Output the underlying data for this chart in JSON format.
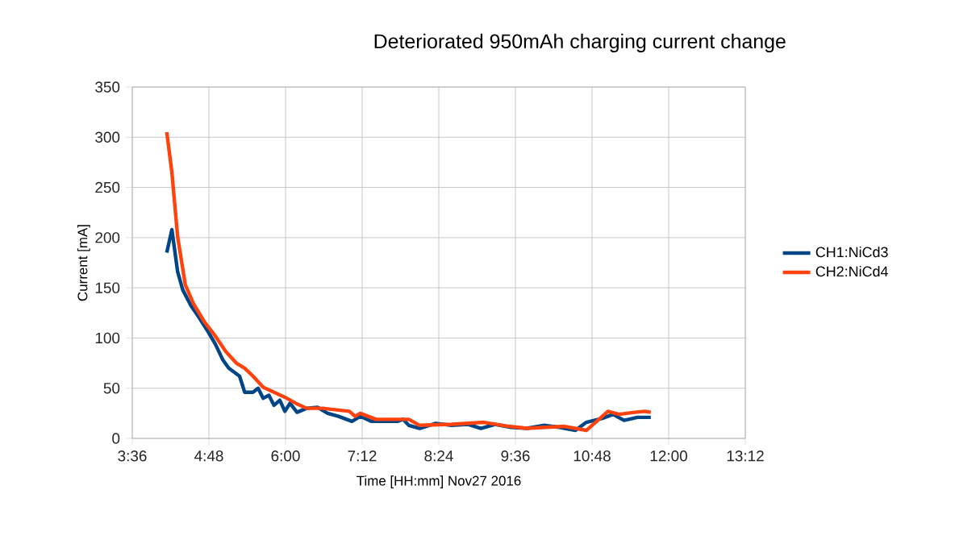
{
  "chart_data": {
    "type": "line",
    "title": "Deteriorated 950mAh charging current change",
    "xlabel": "Time [HH:mm] Nov27 2016",
    "ylabel": "Current [mA]",
    "xlim": [
      3.6,
      13.2
    ],
    "xticks": [
      {
        "value": 3.6,
        "label": "3:36"
      },
      {
        "value": 4.8,
        "label": "4:48"
      },
      {
        "value": 6.0,
        "label": "6:00"
      },
      {
        "value": 7.2,
        "label": "7:12"
      },
      {
        "value": 8.4,
        "label": "8:24"
      },
      {
        "value": 9.6,
        "label": "9:36"
      },
      {
        "value": 10.8,
        "label": "10:48"
      },
      {
        "value": 12.0,
        "label": "12:00"
      },
      {
        "value": 13.2,
        "label": "13:12"
      }
    ],
    "ylim": [
      0,
      350
    ],
    "yticks": [
      0,
      50,
      100,
      150,
      200,
      250,
      300,
      350
    ],
    "grid": true,
    "legend": "right",
    "marker": "none",
    "line_style": "solid",
    "series": [
      {
        "name": "CH1:NiCd3",
        "color": "#004586",
        "x": [
          4.14,
          4.22,
          4.31,
          4.39,
          4.52,
          4.64,
          4.77,
          4.9,
          5.02,
          5.11,
          5.28,
          5.36,
          5.49,
          5.57,
          5.65,
          5.74,
          5.82,
          5.91,
          5.99,
          6.07,
          6.18,
          6.33,
          6.5,
          6.66,
          6.83,
          7.04,
          7.17,
          7.34,
          7.76,
          7.84,
          7.93,
          8.1,
          8.35,
          8.6,
          8.86,
          9.06,
          9.28,
          9.53,
          9.78,
          10.04,
          10.29,
          10.54,
          10.71,
          10.96,
          11.13,
          11.3,
          11.51,
          11.72
        ],
        "values": [
          185,
          208,
          166,
          148,
          132,
          121,
          108,
          94,
          78,
          70,
          62,
          46,
          46,
          50,
          40,
          43,
          33,
          38,
          27,
          35,
          26,
          30,
          31,
          25,
          22,
          17,
          22,
          17,
          17,
          19,
          13,
          10,
          15,
          13,
          14,
          10,
          14,
          11,
          10,
          13,
          11,
          8,
          16,
          20,
          24,
          18,
          21,
          21
        ]
      },
      {
        "name": "CH2:NiCd4",
        "color": "#ff420e",
        "x": [
          4.14,
          4.22,
          4.31,
          4.43,
          4.56,
          4.73,
          4.9,
          5.07,
          5.23,
          5.36,
          5.49,
          5.65,
          5.82,
          5.99,
          6.16,
          6.33,
          6.58,
          7.0,
          7.09,
          7.17,
          7.42,
          7.93,
          8.1,
          8.6,
          9.11,
          9.5,
          9.78,
          10.37,
          10.71,
          11.05,
          11.22,
          11.47,
          11.63,
          11.72
        ],
        "values": [
          305,
          265,
          201,
          153,
          134,
          116,
          102,
          86,
          75,
          70,
          62,
          51,
          46,
          41,
          35,
          30,
          30,
          27,
          22,
          25,
          19,
          19,
          13,
          14,
          16,
          12,
          10,
          12,
          8,
          27,
          24,
          26,
          27,
          26
        ]
      }
    ]
  }
}
